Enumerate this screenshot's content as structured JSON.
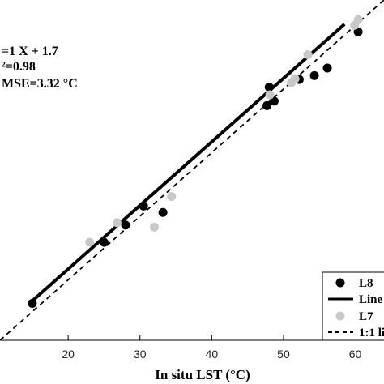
{
  "chart_data": {
    "type": "scatter",
    "xlabel": "In situ LST  (°C)",
    "xlim": [
      10.5,
      64
    ],
    "ylim": [
      10.5,
      64
    ],
    "xticks": [
      20,
      30,
      40,
      50,
      60
    ],
    "annotations": [
      "=1 X + 1.7",
      "²=0.98",
      "MSE=3.32 °C"
    ],
    "legend_position": "bottom-right",
    "series": [
      {
        "name": "L8",
        "kind": "points",
        "color": "#000000",
        "points": [
          [
            15,
            16.3
          ],
          [
            25,
            25.9
          ],
          [
            28,
            28.6
          ],
          [
            30.5,
            31.6
          ],
          [
            33.2,
            30.6
          ],
          [
            47.7,
            47.4
          ],
          [
            48.7,
            48.1
          ],
          [
            52.2,
            51.5
          ],
          [
            54.3,
            52.1
          ],
          [
            56.1,
            53.3
          ],
          [
            60.4,
            59.0
          ],
          [
            48.0,
            50.3
          ]
        ]
      },
      {
        "name": "Line",
        "kind": "line",
        "color": "#000000",
        "slope": 1,
        "intercept": 1.7,
        "x_range": [
          15,
          58.5
        ]
      },
      {
        "name": "L7",
        "kind": "points",
        "color": "#c8c8c8",
        "points": [
          [
            23,
            25.9
          ],
          [
            26.8,
            29
          ],
          [
            32,
            28.3
          ],
          [
            34.4,
            33.1
          ],
          [
            48.1,
            49.1
          ],
          [
            51.1,
            51.0
          ],
          [
            53.4,
            55.4
          ],
          [
            59.9,
            60.0
          ],
          [
            60.4,
            60.9
          ],
          [
            51.6,
            51.6
          ]
        ]
      },
      {
        "name": "1:1 li",
        "kind": "dashed-line",
        "color": "#000000",
        "slope": 1,
        "intercept": 0,
        "x_range": [
          10.5,
          64
        ]
      }
    ]
  }
}
